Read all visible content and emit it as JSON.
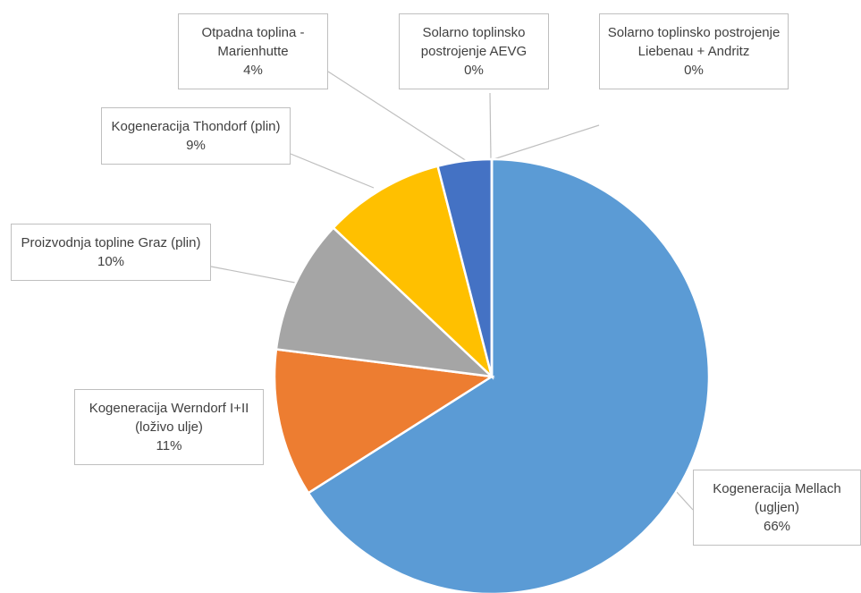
{
  "chart_data": {
    "type": "pie",
    "categories": [
      "Kogeneracija Mellach (ugljen)",
      "Kogeneracija Werndorf I+II (loživo ulje)",
      "Proizvodnja topline Graz (plin)",
      "Kogeneracija Thondorf (plin)",
      "Otpadna toplina - Marienhutte",
      "Solarno toplinsko postrojenje AEVG",
      "Solarno toplinsko postrojenje Liebenau + Andritz"
    ],
    "values": [
      66,
      11,
      10,
      9,
      4,
      0,
      0
    ],
    "value_labels": [
      "66%",
      "11%",
      "10%",
      "9%",
      "4%",
      "0%",
      "0%"
    ],
    "colors": [
      "#5b9bd5",
      "#ed7d31",
      "#a5a5a5",
      "#ffc000",
      "#4472c4",
      "#264478",
      "#9e480e"
    ]
  }
}
